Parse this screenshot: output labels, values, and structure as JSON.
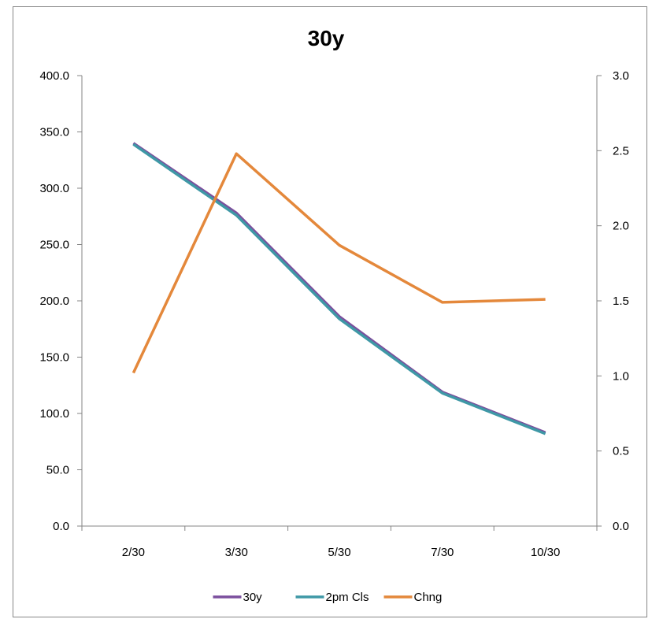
{
  "chart_data": {
    "type": "line",
    "title": "30y",
    "categories": [
      "2/30",
      "3/30",
      "5/30",
      "7/30",
      "10/30"
    ],
    "series": [
      {
        "name": "30y",
        "axis": "left",
        "color": "#7B4F9D",
        "values": [
          340.0,
          278.0,
          186.0,
          119.0,
          83.0
        ]
      },
      {
        "name": "2pm Cls",
        "axis": "left",
        "color": "#3F98A6",
        "values": [
          339.0,
          276.0,
          184.0,
          118.0,
          82.0
        ]
      },
      {
        "name": "Chng",
        "axis": "right",
        "color": "#E4883B",
        "values": [
          1.02,
          2.48,
          1.87,
          1.49,
          1.51
        ]
      }
    ],
    "y_left": {
      "min": 0,
      "max": 400,
      "ticks": [
        "400.0",
        "350.0",
        "300.0",
        "250.0",
        "200.0",
        "150.0",
        "100.0",
        "50.0",
        "0.0"
      ]
    },
    "y_right": {
      "min": 0,
      "max": 3,
      "ticks": [
        "3.0",
        "2.5",
        "2.0",
        "1.5",
        "1.0",
        "0.5",
        "0.0"
      ]
    },
    "grid": false,
    "legend": "bottom"
  }
}
